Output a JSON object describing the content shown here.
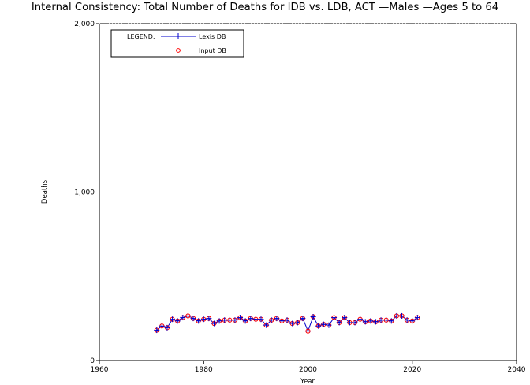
{
  "title": "Internal Consistency: Total Number of Deaths for IDB vs. LDB, ACT —Males —Ages 5 to 64",
  "colors": {
    "lexis": "#0000cc",
    "input": "#ff0000",
    "grid": "#bbbbbb"
  },
  "chart_data": {
    "type": "line",
    "title": "Internal Consistency: Total Number of Deaths for IDB vs. LDB, ACT —Males —Ages 5 to 64",
    "xlabel": "Year",
    "ylabel": "Deaths",
    "xlim": [
      1960,
      2040
    ],
    "ylim": [
      0,
      2000
    ],
    "x_ticks": [
      1960,
      1980,
      2000,
      2020,
      2040
    ],
    "x_tick_labels": [
      "1960",
      "1980",
      "2000",
      "2020",
      "2040"
    ],
    "y_ticks": [
      0,
      1000,
      2000
    ],
    "y_tick_labels": [
      "0",
      "1,000",
      "2,000"
    ],
    "grid": "horizontal dotted",
    "legend": {
      "position": "top-left",
      "title": "LEGEND:",
      "entries": [
        "Lexis DB",
        "Input DB"
      ]
    },
    "x": [
      1971,
      1972,
      1973,
      1974,
      1975,
      1976,
      1977,
      1978,
      1979,
      1980,
      1981,
      1982,
      1983,
      1984,
      1985,
      1986,
      1987,
      1988,
      1989,
      1990,
      1991,
      1992,
      1993,
      1994,
      1995,
      1996,
      1997,
      1998,
      1999,
      2000,
      2001,
      2002,
      2003,
      2004,
      2005,
      2006,
      2007,
      2008,
      2009,
      2010,
      2011,
      2012,
      2013,
      2014,
      2015,
      2016,
      2017,
      2018,
      2019,
      2020,
      2021
    ],
    "series": [
      {
        "name": "Lexis DB",
        "marker": "plus",
        "values": [
          180,
          205,
          195,
          245,
          235,
          255,
          265,
          250,
          235,
          245,
          250,
          220,
          235,
          240,
          240,
          240,
          255,
          235,
          250,
          245,
          245,
          210,
          240,
          250,
          235,
          240,
          220,
          225,
          250,
          175,
          260,
          205,
          215,
          210,
          255,
          225,
          255,
          225,
          225,
          245,
          230,
          235,
          230,
          240,
          240,
          235,
          265,
          265,
          240,
          235,
          255
        ]
      },
      {
        "name": "Input DB",
        "marker": "circle",
        "values": [
          180,
          205,
          195,
          245,
          235,
          255,
          265,
          250,
          235,
          245,
          250,
          220,
          235,
          240,
          240,
          240,
          255,
          235,
          250,
          245,
          245,
          210,
          240,
          250,
          235,
          240,
          220,
          225,
          250,
          175,
          260,
          205,
          215,
          210,
          255,
          225,
          255,
          225,
          225,
          245,
          230,
          235,
          230,
          240,
          240,
          235,
          265,
          265,
          240,
          235,
          255
        ]
      }
    ]
  }
}
